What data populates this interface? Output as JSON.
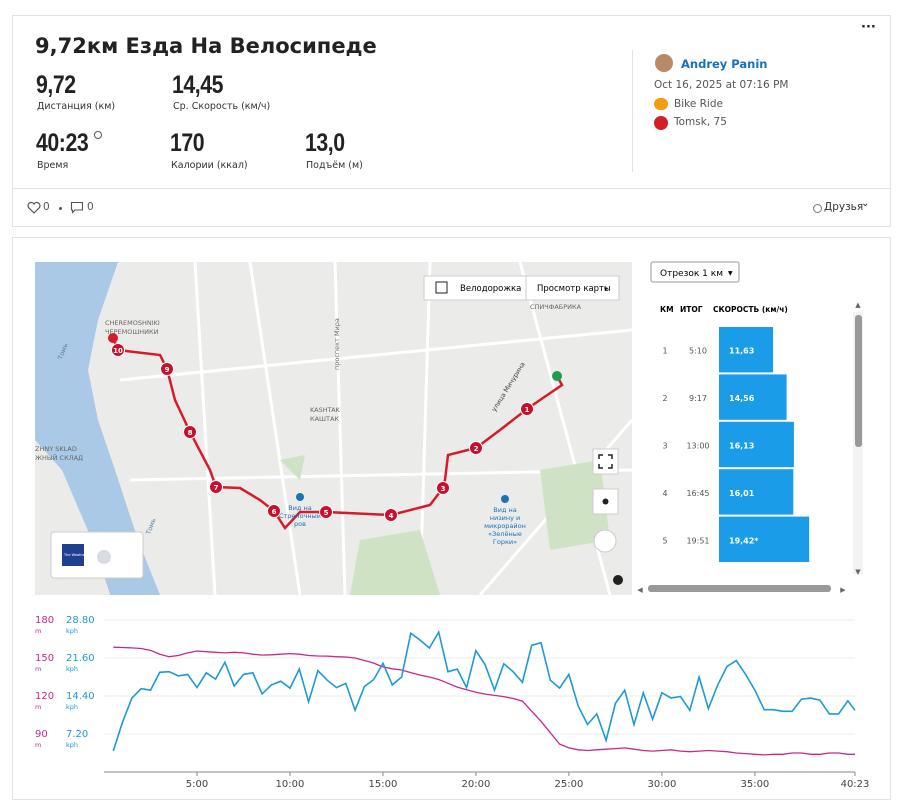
{
  "activity": {
    "title": "9,72км Езда На Велосипеде",
    "stats": [
      {
        "value": "9,72",
        "label": "Дистанция (км)"
      },
      {
        "value": "14,45",
        "label": "Ср. Скорость (км/ч)"
      },
      {
        "value": "40:23",
        "label": "Время"
      },
      {
        "value": "170",
        "label": "Калории (ккал)"
      },
      {
        "value": "13,0",
        "label": "Подъём (м)"
      }
    ],
    "athlete": "Andrey Panin",
    "date": "Oct 16, 2025 at 07:16 PM",
    "activity_type": "Bike Ride",
    "location": "Tomsk, 75",
    "likes": "0",
    "comments": "0",
    "visibility": "Друзья"
  },
  "map": {
    "controls": [
      "Велодорожка",
      "Просмотр карты"
    ],
    "labels": [
      "CHEREMOSHNIKI",
      "ЧЕРЕМОШНИКИ",
      "Томь",
      "проспект Мира",
      "KASHTAK",
      "КАШТАК",
      "улица Мичурина",
      "СПИЧФАБРИКА",
      "ZHNY SKLAD",
      "ЖНЫЙ СКЛАД",
      "Томь",
      "Вид на",
      "Стрелочный",
      "ров",
      "Вид на",
      "низину и",
      "микрорайон",
      "«Зелёные",
      "Горки»",
      "The Weather Channel"
    ],
    "markers": [
      "1",
      "2",
      "3",
      "4",
      "5",
      "6",
      "7",
      "8",
      "9",
      "10"
    ]
  },
  "chart_data": [
    {
      "type": "bar",
      "selector": "Отрезок 1 км",
      "columns": [
        "КМ",
        "ИТОГ",
        "СКОРОСТЬ (км/ч)"
      ],
      "categories": [
        "1",
        "2",
        "3",
        "4",
        "5"
      ],
      "totals": [
        "5:10",
        "9:17",
        "13:00",
        "16:45",
        "19:51"
      ],
      "values": [
        11.63,
        14.56,
        16.13,
        16.01,
        19.42
      ],
      "value_labels": [
        "11,63",
        "14,56",
        "16,13",
        "16,01",
        "19,42*"
      ],
      "color": "#1a9ce8",
      "xlim": [
        0,
        28
      ]
    },
    {
      "type": "line",
      "y_unit": "m",
      "y2_unit": "kph",
      "x": [
        0.5,
        1,
        1.5,
        2,
        2.5,
        3,
        3.5,
        4,
        4.5,
        5,
        5.5,
        6,
        6.5,
        7,
        7.5,
        8,
        8.5,
        9,
        9.5,
        10,
        10.5,
        11,
        11.5,
        12,
        12.5,
        13,
        13.5,
        14,
        14.5,
        15,
        15.5,
        16,
        16.5,
        17,
        17.5,
        18,
        18.5,
        19,
        19.5,
        20,
        20.5,
        21,
        21.5,
        22,
        22.5,
        23,
        23.5,
        24,
        24.5,
        25,
        25.5,
        26,
        26.5,
        27,
        27.5,
        28,
        28.5,
        29,
        29.5,
        30,
        30.5,
        31,
        31.5,
        32,
        32.5,
        33,
        33.5,
        34,
        34.5,
        35,
        35.5,
        36,
        36.5,
        37,
        37.5,
        38,
        38.5,
        39,
        39.5,
        40,
        40.383
      ],
      "xlim": [
        0,
        40.383
      ],
      "xticks": [
        {
          "value": 5,
          "label": "5:00"
        },
        {
          "value": 10,
          "label": "10:00"
        },
        {
          "value": 15,
          "label": "15:00"
        },
        {
          "value": 20,
          "label": "20:00"
        },
        {
          "value": 25,
          "label": "25:00"
        },
        {
          "value": 30,
          "label": "30:00"
        },
        {
          "value": 35,
          "label": "35:00"
        },
        {
          "value": 40.383,
          "label": "40:23"
        }
      ],
      "ylim": [
        60,
        180
      ],
      "yticks": [
        90,
        120,
        150,
        180
      ],
      "y2lim": [
        0,
        28.8
      ],
      "y2ticks": [
        {
          "value": 7.2,
          "label": "7.20"
        },
        {
          "value": 14.4,
          "label": "14.40"
        },
        {
          "value": 21.6,
          "label": "21.60"
        },
        {
          "value": 28.8,
          "label": "28.80"
        }
      ],
      "grid": true,
      "series": [
        {
          "color": "#c8288c",
          "values": [
            158.5,
            158.3,
            158,
            157.5,
            156,
            153,
            151,
            152,
            154,
            155.5,
            155,
            154.5,
            154,
            154.5,
            154,
            153,
            152.3,
            152.5,
            153,
            153.5,
            153,
            152,
            151.6,
            151.5,
            151,
            150.8,
            150,
            148,
            146,
            143,
            141.5,
            140.5,
            138.5,
            136.5,
            135,
            133,
            130,
            127,
            125,
            123,
            121.5,
            120.5,
            119.5,
            118,
            116,
            108,
            100,
            91,
            82,
            79,
            77.5,
            77,
            77.5,
            78,
            78.5,
            79,
            78,
            77,
            76.5,
            77,
            77.5,
            76.5,
            76,
            76.5,
            77,
            76.5,
            76,
            75,
            74.5,
            74,
            73.5,
            74,
            74,
            75,
            75,
            74,
            74,
            75,
            75,
            74,
            74
          ]
        },
        {
          "color": "#1c9ad6",
          "axis": "y2",
          "values": [
            4,
            9.5,
            14,
            15.8,
            15.5,
            18.9,
            19,
            18.2,
            18.5,
            16,
            18.8,
            17.6,
            20.8,
            16.3,
            18.5,
            18.8,
            14.8,
            16.5,
            17.2,
            15.9,
            19.5,
            13.3,
            19.2,
            17.4,
            16,
            16.8,
            11.7,
            16.2,
            17.5,
            20.6,
            16.5,
            18,
            26.3,
            25,
            23.5,
            26.5,
            19,
            19.5,
            16,
            23,
            20.3,
            15.5,
            20.5,
            19,
            17,
            24,
            24.5,
            17.4,
            15.9,
            18.5,
            12.5,
            9,
            11,
            6,
            13,
            15.5,
            9,
            15,
            10,
            15,
            14,
            14.3,
            11.7,
            18,
            12,
            16.5,
            20,
            21.1,
            18.5,
            15.5,
            11.8,
            11.8,
            11.5,
            11.5,
            13.8,
            14,
            13.6,
            11,
            11,
            13.5,
            11.7
          ]
        }
      ]
    }
  ]
}
